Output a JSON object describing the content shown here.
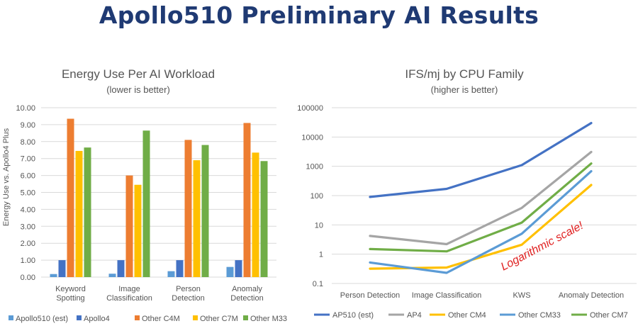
{
  "header": {
    "title": "Apollo510 Preliminary AI Results"
  },
  "chart_data": [
    {
      "type": "bar",
      "title": "Energy Use Per AI Workload",
      "subtitle": "(lower is better)",
      "xlabel": "",
      "ylabel": "Energy Use vs. Apollo4 Plus",
      "ylim": [
        0,
        10
      ],
      "yticks": [
        "0.00",
        "1.00",
        "2.00",
        "3.00",
        "4.00",
        "5.00",
        "6.00",
        "7.00",
        "8.00",
        "9.00",
        "10.00"
      ],
      "grid": true,
      "legend": "bottom",
      "categories": [
        [
          "Keyword",
          "Spotting"
        ],
        [
          "Image",
          "Classification"
        ],
        [
          "Person",
          "Detection"
        ],
        [
          "Anomaly",
          "Detection"
        ]
      ],
      "series": [
        {
          "name": "Apollo510 (est)",
          "color": "#5b9bd5",
          "values": [
            0.18,
            0.2,
            0.35,
            0.6
          ]
        },
        {
          "name": "Apollo4",
          "color": "#4472c4",
          "values": [
            1.0,
            1.0,
            1.0,
            1.0
          ]
        },
        {
          "name": "Other C4M",
          "color": "#ed7d31",
          "values": [
            9.35,
            6.0,
            8.1,
            9.1
          ]
        },
        {
          "name": "Other C7M",
          "color": "#ffc000",
          "values": [
            7.45,
            5.45,
            6.9,
            7.35
          ]
        },
        {
          "name": "Other M33",
          "color": "#70ad47",
          "values": [
            7.65,
            8.65,
            7.8,
            6.85
          ]
        }
      ]
    },
    {
      "type": "line",
      "title": "IFS/mj by CPU Family",
      "subtitle": "(higher is better)",
      "xlabel": "",
      "ylabel": "",
      "yscale": "log",
      "ylim": [
        0.1,
        100000
      ],
      "yticks": [
        "0.1",
        "1",
        "10",
        "100",
        "1000",
        "10000",
        "100000"
      ],
      "grid": true,
      "legend": "bottom",
      "categories": [
        "Person Detection",
        "Image Classification",
        "KWS",
        "Anomaly Detection"
      ],
      "annotation": "Logarithmic scale!",
      "series": [
        {
          "name": "AP510 (est)",
          "color": "#4472c4",
          "values": [
            90,
            170,
            1100,
            30000
          ]
        },
        {
          "name": "AP4",
          "color": "#a5a5a5",
          "values": [
            4.2,
            2.2,
            38,
            3100
          ]
        },
        {
          "name": "Other CM4",
          "color": "#ffc000",
          "values": [
            0.32,
            0.35,
            2.1,
            230
          ]
        },
        {
          "name": "Other CM33",
          "color": "#5b9bd5",
          "values": [
            0.52,
            0.23,
            5.0,
            680
          ]
        },
        {
          "name": "Other CM7",
          "color": "#70ad47",
          "values": [
            1.5,
            1.25,
            12,
            1250
          ]
        }
      ]
    }
  ]
}
